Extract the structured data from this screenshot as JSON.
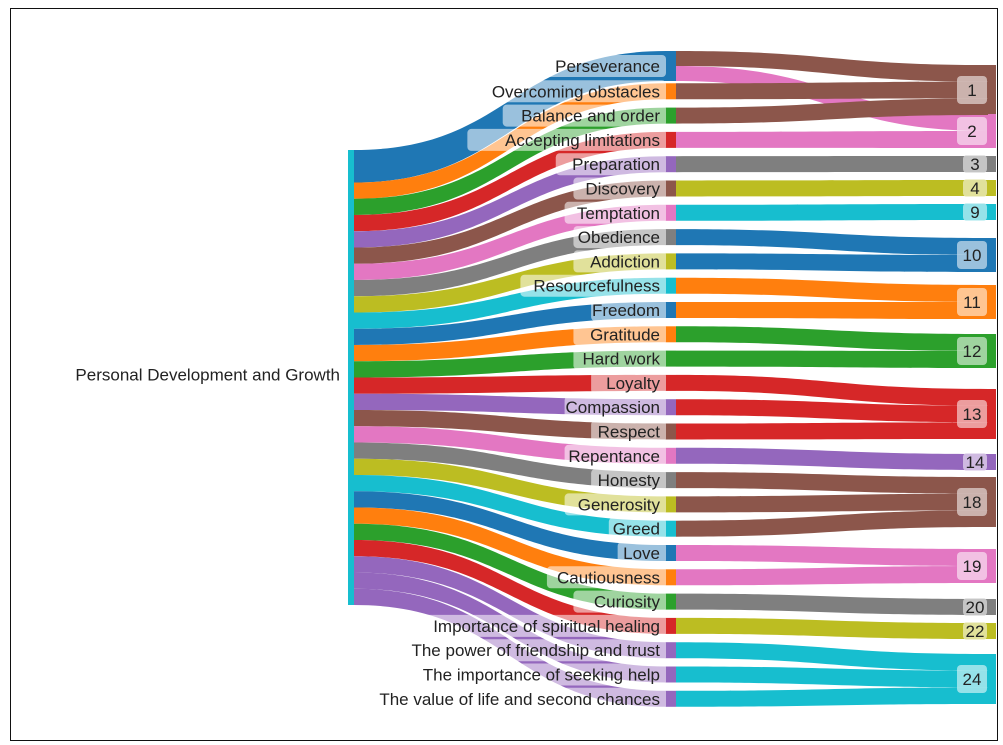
{
  "chart_data": {
    "type": "sankey",
    "source": "Personal Development and Growth",
    "themes": [
      {
        "label": "Perseverance",
        "targets": [
          "1",
          "2"
        ],
        "color": "#1f77b4"
      },
      {
        "label": "Overcoming obstacles",
        "targets": [
          "1"
        ],
        "color": "#ff7f0e"
      },
      {
        "label": "Balance and order",
        "targets": [
          "1"
        ],
        "color": "#2ca02c"
      },
      {
        "label": "Accepting limitations",
        "targets": [
          "2"
        ],
        "color": "#d62728"
      },
      {
        "label": "Preparation",
        "targets": [
          "3"
        ],
        "color": "#9467bd"
      },
      {
        "label": "Discovery",
        "targets": [
          "4"
        ],
        "color": "#8c564b"
      },
      {
        "label": "Temptation",
        "targets": [
          "9"
        ],
        "color": "#e377c2"
      },
      {
        "label": "Obedience",
        "targets": [
          "10"
        ],
        "color": "#7f7f7f"
      },
      {
        "label": "Addiction",
        "targets": [
          "10"
        ],
        "color": "#bcbd22"
      },
      {
        "label": "Resourcefulness",
        "targets": [
          "11"
        ],
        "color": "#17becf"
      },
      {
        "label": "Freedom",
        "targets": [
          "11"
        ],
        "color": "#1f77b4"
      },
      {
        "label": "Gratitude",
        "targets": [
          "12"
        ],
        "color": "#ff7f0e"
      },
      {
        "label": "Hard work",
        "targets": [
          "12"
        ],
        "color": "#2ca02c"
      },
      {
        "label": "Loyalty",
        "targets": [
          "13"
        ],
        "color": "#d62728"
      },
      {
        "label": "Compassion",
        "targets": [
          "13"
        ],
        "color": "#9467bd"
      },
      {
        "label": "Respect",
        "targets": [
          "13"
        ],
        "color": "#8c564b"
      },
      {
        "label": "Repentance",
        "targets": [
          "14"
        ],
        "color": "#e377c2"
      },
      {
        "label": "Honesty",
        "targets": [
          "18"
        ],
        "color": "#7f7f7f"
      },
      {
        "label": "Generosity",
        "targets": [
          "18"
        ],
        "color": "#bcbd22"
      },
      {
        "label": "Greed",
        "targets": [
          "18"
        ],
        "color": "#17becf"
      },
      {
        "label": "Love",
        "targets": [
          "19"
        ],
        "color": "#1f77b4"
      },
      {
        "label": "Cautiousness",
        "targets": [
          "19"
        ],
        "color": "#ff7f0e"
      },
      {
        "label": "Curiosity",
        "targets": [
          "20"
        ],
        "color": "#2ca02c"
      },
      {
        "label": "Importance of spiritual healing",
        "targets": [
          "22"
        ],
        "color": "#d62728"
      },
      {
        "label": "The power of friendship and trust",
        "targets": [
          "24"
        ],
        "color": "#9467bd"
      },
      {
        "label": "The importance of seeking help",
        "targets": [
          "24"
        ],
        "color": "#9467bd"
      },
      {
        "label": "The value of life and second chances",
        "targets": [
          "24"
        ],
        "color": "#9467bd"
      }
    ],
    "targets": [
      {
        "label": "1",
        "color": "#8c564b"
      },
      {
        "label": "2",
        "color": "#e377c2"
      },
      {
        "label": "3",
        "color": "#7f7f7f"
      },
      {
        "label": "4",
        "color": "#bcbd22"
      },
      {
        "label": "9",
        "color": "#17becf"
      },
      {
        "label": "10",
        "color": "#1f77b4"
      },
      {
        "label": "11",
        "color": "#ff7f0e"
      },
      {
        "label": "12",
        "color": "#2ca02c"
      },
      {
        "label": "13",
        "color": "#d62728"
      },
      {
        "label": "14",
        "color": "#9467bd"
      },
      {
        "label": "18",
        "color": "#8c564b"
      },
      {
        "label": "19",
        "color": "#e377c2"
      },
      {
        "label": "20",
        "color": "#7f7f7f"
      },
      {
        "label": "22",
        "color": "#bcbd22"
      },
      {
        "label": "24",
        "color": "#17becf"
      }
    ],
    "flow_value_each": 1,
    "source_color": "#17becf"
  }
}
